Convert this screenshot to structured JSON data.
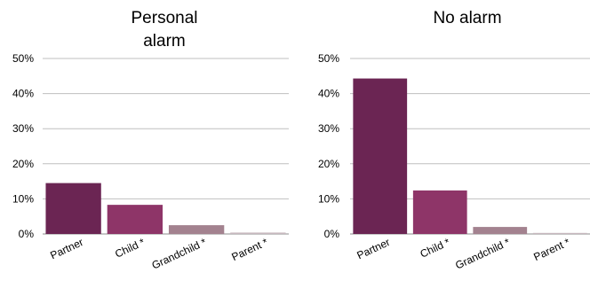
{
  "chart_data": [
    {
      "type": "bar",
      "title_lines": [
        "Personal",
        "alarm"
      ],
      "categories": [
        "Partner",
        "Child *",
        "Grandchild *",
        "Parent *"
      ],
      "values": [
        14.5,
        8.3,
        2.5,
        0.4
      ],
      "ylim": [
        0,
        50
      ],
      "yticks": [
        "0%",
        "10%",
        "20%",
        "30%",
        "40%",
        "50%"
      ],
      "grid": true,
      "colors": [
        "#6b2553",
        "#8e3568",
        "#a3828f",
        "#c7b8be"
      ]
    },
    {
      "type": "bar",
      "title_lines": [
        "No alarm"
      ],
      "categories": [
        "Partner",
        "Child *",
        "Grandchild *",
        "Parent *"
      ],
      "values": [
        44.3,
        12.4,
        2.0,
        0.3
      ],
      "ylim": [
        0,
        50
      ],
      "yticks": [
        "0%",
        "10%",
        "20%",
        "30%",
        "40%",
        "50%"
      ],
      "grid": true,
      "colors": [
        "#6b2553",
        "#8e3568",
        "#a3828f",
        "#c7b8be"
      ]
    }
  ]
}
